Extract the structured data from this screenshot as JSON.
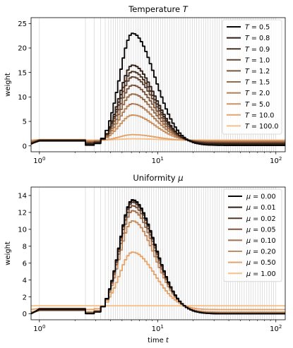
{
  "chart_data": [
    {
      "type": "line",
      "title": "Temperature T",
      "title_prefix": "Temperature ",
      "title_symbol": "T",
      "xlabel": "",
      "ylabel": "weight",
      "xscale": "log",
      "xlim": [
        0.85,
        120
      ],
      "ylim": [
        -1.2,
        26.2
      ],
      "x_tick_labels": [
        {
          "base": "10",
          "exp": "0",
          "value": 1
        },
        {
          "base": "10",
          "exp": "1",
          "value": 10
        },
        {
          "base": "10",
          "exp": "2",
          "value": 100
        }
      ],
      "y_ticks": [
        0,
        5,
        10,
        15,
        20,
        25
      ],
      "legend_position": "top-right",
      "legend_symbol": "T",
      "peak_x": 6,
      "series": [
        {
          "name": "0.5",
          "peak": 23.0,
          "floor": 0.1,
          "color": "#0a0706"
        },
        {
          "name": "0.8",
          "peak": 16.5,
          "floor": 0.35,
          "color": "#2e1e16"
        },
        {
          "name": "0.9",
          "peak": 15.2,
          "floor": 0.45,
          "color": "#4a3122"
        },
        {
          "name": "1.0",
          "peak": 14.1,
          "floor": 0.55,
          "color": "#634330"
        },
        {
          "name": "1.2",
          "peak": 12.4,
          "floor": 0.65,
          "color": "#7d553b"
        },
        {
          "name": "1.5",
          "peak": 10.6,
          "floor": 0.75,
          "color": "#986a47"
        },
        {
          "name": "2.0",
          "peak": 8.6,
          "floor": 0.85,
          "color": "#b27d54"
        },
        {
          "name": "5.0",
          "peak": 6.3,
          "floor": 0.95,
          "color": "#cc9160"
        },
        {
          "name": "10.0",
          "peak": 2.3,
          "floor": 1.1,
          "color": "#e4a46c"
        },
        {
          "name": "100.0",
          "peak": 1.45,
          "floor": 1.2,
          "color": "#f6c08a"
        }
      ]
    },
    {
      "type": "line",
      "title": "Uniformity μ",
      "title_prefix": "Uniformity ",
      "title_symbol": "μ",
      "xlabel": "time t",
      "xlabel_prefix": "time ",
      "xlabel_symbol": "t",
      "ylabel": "weight",
      "xscale": "log",
      "xlim": [
        0.85,
        120
      ],
      "ylim": [
        -0.7,
        15.0
      ],
      "x_tick_labels": [
        {
          "base": "10",
          "exp": "0",
          "value": 1
        },
        {
          "base": "10",
          "exp": "1",
          "value": 10
        },
        {
          "base": "10",
          "exp": "2",
          "value": 100
        }
      ],
      "y_ticks": [
        0,
        2,
        4,
        6,
        8,
        10,
        12,
        14
      ],
      "legend_position": "top-right",
      "legend_symbol": "μ",
      "peak_x": 6,
      "series": [
        {
          "name": "0.00",
          "peak": 13.5,
          "floor": 0.0,
          "color": "#0a0706"
        },
        {
          "name": "0.01",
          "peak": 13.4,
          "floor": 0.01,
          "color": "#2e1e16"
        },
        {
          "name": "0.02",
          "peak": 13.2,
          "floor": 0.02,
          "color": "#55392a"
        },
        {
          "name": "0.05",
          "peak": 12.8,
          "floor": 0.05,
          "color": "#7d553b"
        },
        {
          "name": "0.10",
          "peak": 12.2,
          "floor": 0.1,
          "color": "#a37050"
        },
        {
          "name": "0.20",
          "peak": 11.0,
          "floor": 0.2,
          "color": "#c68c5e"
        },
        {
          "name": "0.50",
          "peak": 7.3,
          "floor": 0.5,
          "color": "#e4a46c"
        },
        {
          "name": "1.00",
          "peak": 0.95,
          "floor": 0.95,
          "color": "#f6c08a"
        }
      ]
    }
  ]
}
